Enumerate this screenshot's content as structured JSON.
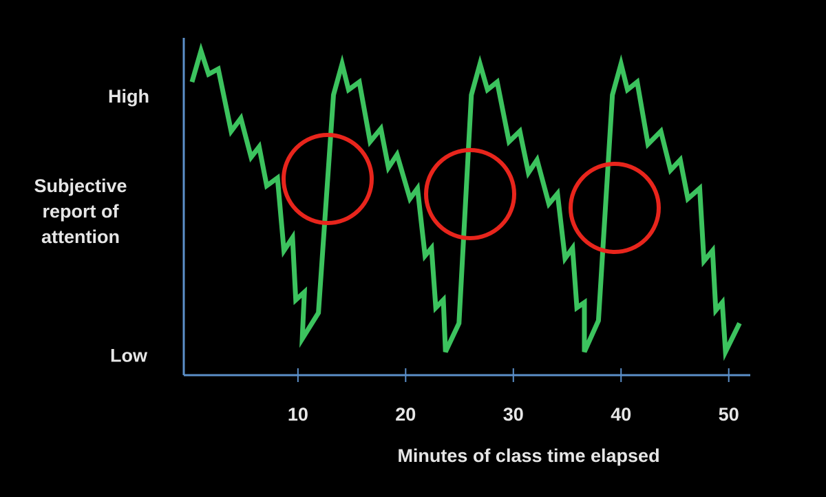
{
  "chart_data": {
    "type": "line",
    "y_label": "Subjective report of attention",
    "x_label": "Minutes of class time elapsed",
    "x": [
      0.16,
      1.0,
      1.7,
      2.6,
      3.8,
      4.7,
      5.65,
      6.4,
      7.1,
      8.1,
      8.7,
      9.5,
      9.8,
      10.6,
      10.4,
      11.9,
      13.3,
      14.1,
      14.7,
      15.7,
      16.7,
      17.7,
      18.4,
      19.2,
      20.4,
      21.1,
      21.8,
      22.4,
      22.8,
      23.5,
      23.7,
      24.95,
      26.1,
      26.9,
      27.6,
      28.5,
      29.6,
      30.6,
      31.4,
      32.2,
      33.3,
      34.1,
      34.8,
      35.5,
      35.9,
      36.6,
      36.6,
      37.9,
      39.2,
      40.0,
      40.6,
      41.5,
      42.5,
      43.7,
      44.6,
      45.5,
      46.2,
      47.3,
      47.7,
      48.5,
      48.8,
      49.4,
      49.7,
      51.0
    ],
    "series": [
      {
        "color": "#3cc35e",
        "values": [
          10.6,
          11.8,
          10.9,
          11.1,
          8.7,
          9.2,
          7.7,
          8.1,
          6.6,
          6.9,
          4.1,
          4.6,
          2.2,
          2.5,
          0.7,
          1.7,
          10.1,
          11.3,
          10.3,
          10.6,
          8.3,
          8.8,
          7.3,
          7.8,
          6.1,
          6.5,
          3.9,
          4.2,
          1.9,
          2.2,
          0.2,
          1.3,
          10.1,
          11.3,
          10.3,
          10.6,
          8.3,
          8.7,
          7.1,
          7.6,
          5.9,
          6.3,
          3.8,
          4.2,
          1.9,
          2.1,
          0.2,
          1.4,
          10.1,
          11.3,
          10.3,
          10.6,
          8.2,
          8.7,
          7.2,
          7.6,
          6.1,
          6.5,
          3.7,
          4.1,
          1.8,
          2.1,
          0.2,
          1.3
        ]
      }
    ],
    "xlim": [
      -0.6,
      52
    ],
    "xticks": [
      10,
      20,
      30,
      40,
      50
    ],
    "ylim": [
      -0.7,
      12.3
    ],
    "yticks": [
      {
        "value": 0,
        "label": "Low"
      },
      {
        "value": 10,
        "label": "High"
      }
    ],
    "axis_color": "#5b8fc9",
    "grid": false
  }
}
